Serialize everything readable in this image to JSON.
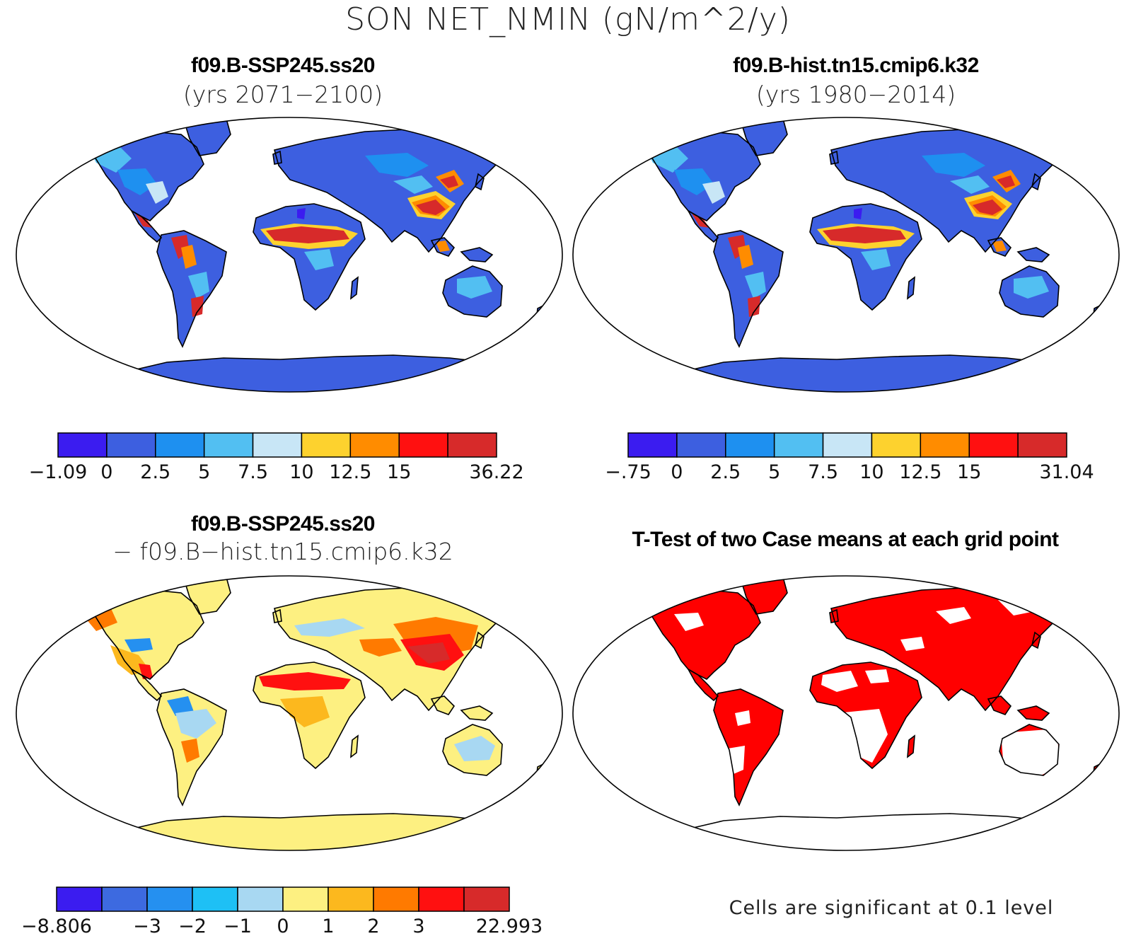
{
  "title": "SON NET_NMIN (gN/m^2/y)",
  "panels": [
    {
      "id": "ssp245",
      "title": "f09.B-SSP245.ss20",
      "subtitle": "(yrs 2071−2100)",
      "colorbar": {
        "colors": [
          "#3b1cf0",
          "#3d5fe0",
          "#1e90f0",
          "#52bff2",
          "#c8e6f6",
          "#fdd22e",
          "#ff8c00",
          "#ff1010",
          "#d72a2a"
        ],
        "labels": [
          "−1.09",
          "0",
          "2.5",
          "5",
          "7.5",
          "10",
          "12.5",
          "15",
          "",
          "36.22"
        ]
      }
    },
    {
      "id": "hist",
      "title": "f09.B-hist.tn15.cmip6.k32",
      "subtitle": "(yrs 1980−2014)",
      "colorbar": {
        "colors": [
          "#3b1cf0",
          "#3d5fe0",
          "#1e90f0",
          "#52bff2",
          "#c8e6f6",
          "#fdd22e",
          "#ff8c00",
          "#ff1010",
          "#d72a2a"
        ],
        "labels": [
          "−.75",
          "0",
          "2.5",
          "5",
          "7.5",
          "10",
          "12.5",
          "15",
          "",
          "31.04"
        ]
      }
    },
    {
      "id": "diff",
      "title": "f09.B-SSP245.ss20",
      "subtitle": "−  f09.B−hist.tn15.cmip6.k32",
      "colorbar": {
        "colors": [
          "#3b1cf0",
          "#3d6ae0",
          "#2590f0",
          "#1ec0f5",
          "#a8d8f2",
          "#fdf081",
          "#fcb81e",
          "#ff7a00",
          "#ff1010",
          "#d72a2a"
        ],
        "labels": [
          "−8.806",
          "",
          "−3",
          "−2",
          "−1",
          "0",
          "1",
          "2",
          "3",
          "",
          "22.993"
        ]
      }
    },
    {
      "id": "ttest",
      "title": "T-Test of two Case means at each grid point",
      "subtitle": "",
      "note": "Cells are significant at 0.1 level"
    }
  ],
  "layers": {
    "ocean": "#ffffff",
    "coastline": "#000000",
    "significant": "#ff0000"
  }
}
